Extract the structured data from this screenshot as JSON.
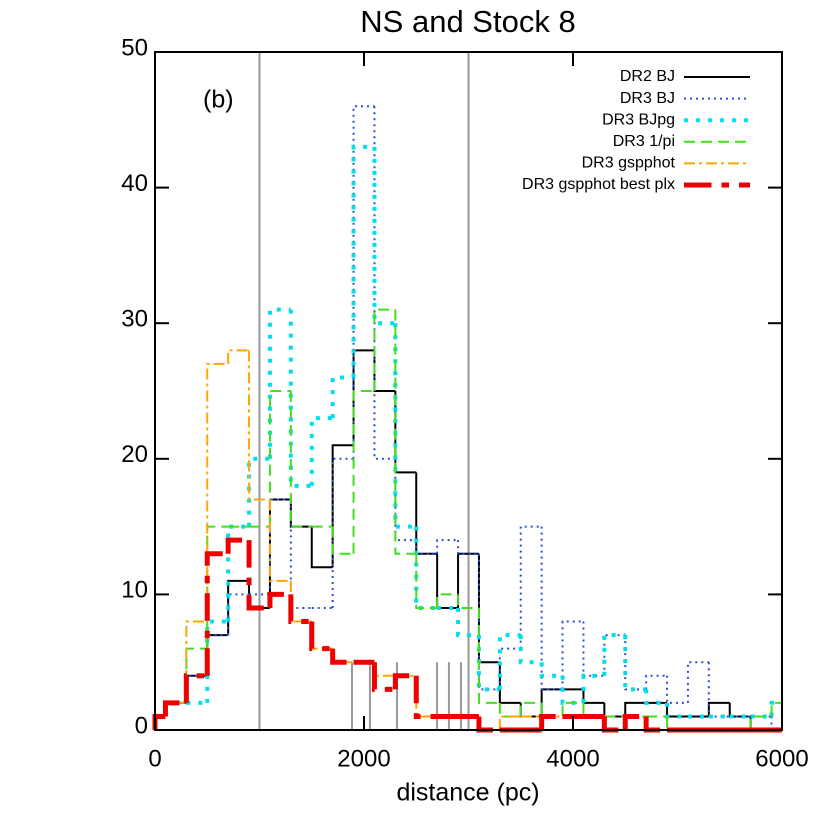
{
  "chart_data": {
    "type": "step_histogram",
    "title": "NS and Stock 8",
    "xlabel": "distance (pc)",
    "annotation": "(b)",
    "bins": [
      0,
      100,
      300,
      500,
      700,
      900,
      1100,
      1300,
      1500,
      1700,
      1900,
      2100,
      2300,
      2500,
      2700,
      2900,
      3100,
      3300,
      3500,
      3700,
      3900,
      4100,
      4300,
      4500,
      4700,
      4900,
      5100,
      5300,
      5500,
      5700,
      5900,
      6000
    ],
    "series": [
      {
        "name": "DR2 BJ",
        "color": "#000000",
        "linestyle": "solid",
        "width": 2,
        "values": [
          1,
          2,
          4,
          7,
          11,
          9,
          17,
          15,
          12,
          21,
          28,
          25,
          19,
          13,
          9,
          13,
          5,
          2,
          1,
          3,
          3,
          2,
          1,
          2,
          2,
          1,
          1,
          2,
          1,
          0,
          0
        ]
      },
      {
        "name": "DR3 BJ",
        "color": "#2b4fd8",
        "linestyle": "dotted",
        "width": 2,
        "values": [
          1,
          2,
          4,
          7,
          10,
          10,
          17,
          9,
          9,
          20,
          46,
          20,
          14,
          13,
          14,
          13,
          3,
          6,
          15,
          3,
          8,
          4,
          7,
          3,
          4,
          2,
          5,
          1,
          1,
          1,
          0
        ]
      },
      {
        "name": "DR3 BJpg",
        "color": "#00dfee",
        "linestyle": "dotted",
        "width": 4,
        "values": [
          1,
          2,
          2,
          8,
          15,
          20,
          31,
          18,
          23,
          26,
          43,
          30,
          15,
          9,
          9,
          7,
          3,
          7,
          5,
          4,
          2,
          4,
          7,
          3,
          2,
          1,
          1,
          1,
          1,
          1,
          2
        ]
      },
      {
        "name": "DR3 1/pi",
        "color": "#44dd22",
        "linestyle": "dashed",
        "width": 2,
        "values": [
          1,
          2,
          6,
          15,
          15,
          15,
          25,
          15,
          15,
          13,
          25,
          31,
          13,
          9,
          10,
          9,
          2,
          1,
          2,
          1,
          2,
          1,
          1,
          1,
          1,
          0,
          0,
          0,
          0,
          1,
          2
        ]
      },
      {
        "name": "DR3 gspphot",
        "color": "#ffa500",
        "linestyle": "dashdot",
        "width": 2,
        "values": [
          1,
          2,
          8,
          27,
          28,
          17,
          11,
          8,
          6,
          5,
          5,
          4,
          4,
          1,
          1,
          1,
          0,
          1,
          1,
          1,
          1,
          1,
          0,
          0,
          0,
          0,
          0,
          0,
          0,
          0,
          0
        ]
      },
      {
        "name": "DR3 gspphot best plx",
        "color": "#ee0000",
        "linestyle": "dashdot",
        "width": 5,
        "values": [
          1,
          2,
          4,
          13,
          14,
          9,
          10,
          8,
          6,
          5,
          5,
          3,
          4,
          1,
          1,
          1,
          0,
          0,
          0,
          1,
          1,
          1,
          0,
          1,
          0,
          0,
          0,
          0,
          0,
          0,
          0
        ]
      }
    ],
    "reference_lines": [
      1000,
      3000
    ],
    "short_lines": {
      "x": [
        1885,
        2057,
        2316,
        2699,
        2813,
        2928
      ],
      "height": [
        5,
        5,
        5,
        5,
        5,
        5
      ]
    },
    "xlim": [
      0,
      6000
    ],
    "xticks": [
      0,
      2000,
      4000,
      6000
    ],
    "ylim": [
      0,
      50
    ],
    "yticks": [
      0,
      10,
      20,
      30,
      40,
      50
    ]
  }
}
